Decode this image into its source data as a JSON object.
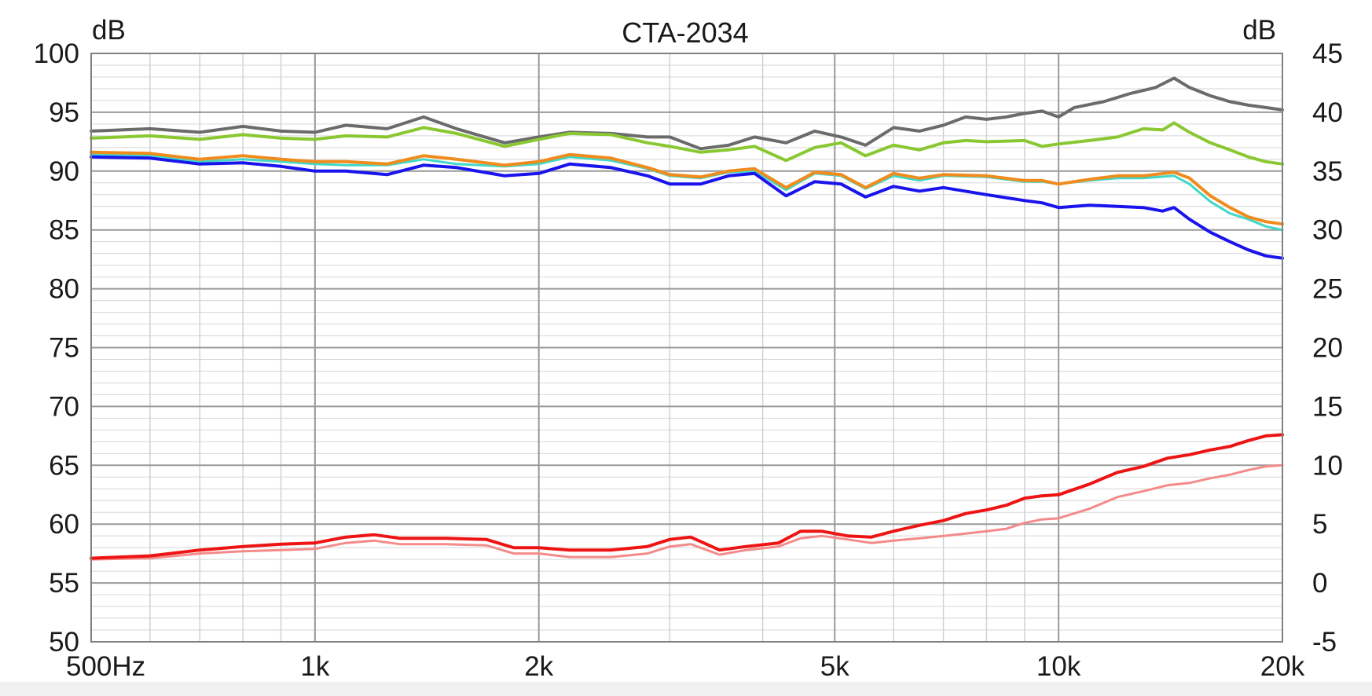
{
  "chart_data": {
    "type": "line",
    "title": "CTA-2034",
    "ylabel_left": "dB",
    "ylabel_right": "dB",
    "x_scale": "log",
    "xlim": [
      500,
      20000
    ],
    "x_ticks": [
      {
        "value": 500,
        "label": "500Hz"
      },
      {
        "value": 1000,
        "label": "1k"
      },
      {
        "value": 2000,
        "label": "2k"
      },
      {
        "value": 5000,
        "label": "5k"
      },
      {
        "value": 10000,
        "label": "10k"
      },
      {
        "value": 20000,
        "label": "20k"
      }
    ],
    "ylim_left": [
      50,
      100
    ],
    "ylim_right": [
      -5,
      45
    ],
    "y_ticks_left": [
      "100",
      "95",
      "90",
      "85",
      "80",
      "75",
      "70",
      "65",
      "60",
      "55",
      "50"
    ],
    "y_ticks_right": [
      "45",
      "40",
      "35",
      "30",
      "25",
      "20",
      "15",
      "10",
      "5",
      "0",
      "-5"
    ],
    "grid": true,
    "legend": "none",
    "series": [
      {
        "color": "#6b6b6b",
        "width": 4,
        "points": [
          [
            500,
            93.4
          ],
          [
            600,
            93.6
          ],
          [
            700,
            93.3
          ],
          [
            800,
            93.8
          ],
          [
            900,
            93.4
          ],
          [
            1000,
            93.3
          ],
          [
            1100,
            93.9
          ],
          [
            1250,
            93.6
          ],
          [
            1400,
            94.6
          ],
          [
            1550,
            93.6
          ],
          [
            1800,
            92.4
          ],
          [
            2000,
            92.9
          ],
          [
            2200,
            93.3
          ],
          [
            2500,
            93.2
          ],
          [
            2800,
            92.9
          ],
          [
            3000,
            92.9
          ],
          [
            3300,
            91.9
          ],
          [
            3600,
            92.2
          ],
          [
            3900,
            92.9
          ],
          [
            4300,
            92.4
          ],
          [
            4700,
            93.4
          ],
          [
            5100,
            92.9
          ],
          [
            5500,
            92.2
          ],
          [
            6000,
            93.7
          ],
          [
            6500,
            93.4
          ],
          [
            7000,
            93.9
          ],
          [
            7500,
            94.6
          ],
          [
            8000,
            94.4
          ],
          [
            8500,
            94.6
          ],
          [
            9000,
            94.9
          ],
          [
            9500,
            95.1
          ],
          [
            10000,
            94.6
          ],
          [
            10500,
            95.4
          ],
          [
            11500,
            95.9
          ],
          [
            12500,
            96.6
          ],
          [
            13500,
            97.1
          ],
          [
            14300,
            97.9
          ],
          [
            15000,
            97.1
          ],
          [
            16000,
            96.4
          ],
          [
            17000,
            95.9
          ],
          [
            18000,
            95.6
          ],
          [
            19000,
            95.4
          ],
          [
            20000,
            95.2
          ]
        ]
      },
      {
        "color": "#8ac832",
        "width": 4,
        "points": [
          [
            500,
            92.8
          ],
          [
            600,
            93.0
          ],
          [
            700,
            92.7
          ],
          [
            800,
            93.1
          ],
          [
            900,
            92.8
          ],
          [
            1000,
            92.7
          ],
          [
            1100,
            93.0
          ],
          [
            1250,
            92.9
          ],
          [
            1400,
            93.7
          ],
          [
            1550,
            93.2
          ],
          [
            1800,
            92.1
          ],
          [
            2000,
            92.7
          ],
          [
            2200,
            93.2
          ],
          [
            2500,
            93.1
          ],
          [
            2800,
            92.4
          ],
          [
            3000,
            92.1
          ],
          [
            3300,
            91.6
          ],
          [
            3600,
            91.8
          ],
          [
            3900,
            92.1
          ],
          [
            4300,
            90.9
          ],
          [
            4700,
            92.0
          ],
          [
            5100,
            92.4
          ],
          [
            5500,
            91.3
          ],
          [
            6000,
            92.2
          ],
          [
            6500,
            91.8
          ],
          [
            7000,
            92.4
          ],
          [
            7500,
            92.6
          ],
          [
            8000,
            92.5
          ],
          [
            9000,
            92.6
          ],
          [
            9500,
            92.1
          ],
          [
            10000,
            92.3
          ],
          [
            11000,
            92.6
          ],
          [
            12000,
            92.9
          ],
          [
            13000,
            93.6
          ],
          [
            13800,
            93.5
          ],
          [
            14300,
            94.1
          ],
          [
            15000,
            93.3
          ],
          [
            16000,
            92.4
          ],
          [
            17000,
            91.8
          ],
          [
            18000,
            91.2
          ],
          [
            19000,
            90.8
          ],
          [
            20000,
            90.6
          ]
        ]
      },
      {
        "color": "#40d8c8",
        "width": 3,
        "points": [
          [
            500,
            91.4
          ],
          [
            600,
            91.3
          ],
          [
            700,
            90.8
          ],
          [
            800,
            91.0
          ],
          [
            900,
            90.8
          ],
          [
            1000,
            90.6
          ],
          [
            1100,
            90.5
          ],
          [
            1250,
            90.5
          ],
          [
            1400,
            91.0
          ],
          [
            1550,
            90.6
          ],
          [
            1800,
            90.4
          ],
          [
            2000,
            90.6
          ],
          [
            2200,
            91.2
          ],
          [
            2500,
            90.9
          ],
          [
            2800,
            90.2
          ],
          [
            3000,
            89.6
          ],
          [
            3300,
            89.4
          ],
          [
            3600,
            89.9
          ],
          [
            3900,
            90.0
          ],
          [
            4300,
            88.4
          ],
          [
            4700,
            89.8
          ],
          [
            5100,
            89.6
          ],
          [
            5500,
            88.5
          ],
          [
            6000,
            89.6
          ],
          [
            6500,
            89.2
          ],
          [
            7000,
            89.6
          ],
          [
            8000,
            89.5
          ],
          [
            9000,
            89.1
          ],
          [
            9500,
            89.1
          ],
          [
            10000,
            88.9
          ],
          [
            11000,
            89.2
          ],
          [
            12000,
            89.4
          ],
          [
            13000,
            89.4
          ],
          [
            14300,
            89.6
          ],
          [
            15000,
            88.9
          ],
          [
            16000,
            87.4
          ],
          [
            17000,
            86.4
          ],
          [
            18000,
            85.9
          ],
          [
            19000,
            85.3
          ],
          [
            20000,
            85.0
          ]
        ]
      },
      {
        "color": "#f08c1e",
        "width": 4,
        "points": [
          [
            500,
            91.6
          ],
          [
            600,
            91.5
          ],
          [
            700,
            91.0
          ],
          [
            800,
            91.3
          ],
          [
            900,
            91.0
          ],
          [
            1000,
            90.8
          ],
          [
            1100,
            90.8
          ],
          [
            1250,
            90.6
          ],
          [
            1400,
            91.3
          ],
          [
            1550,
            91.0
          ],
          [
            1800,
            90.5
          ],
          [
            2000,
            90.8
          ],
          [
            2200,
            91.4
          ],
          [
            2500,
            91.1
          ],
          [
            2800,
            90.3
          ],
          [
            3000,
            89.7
          ],
          [
            3300,
            89.5
          ],
          [
            3600,
            90.0
          ],
          [
            3900,
            90.2
          ],
          [
            4300,
            88.6
          ],
          [
            4700,
            89.9
          ],
          [
            5100,
            89.7
          ],
          [
            5500,
            88.6
          ],
          [
            6000,
            89.8
          ],
          [
            6500,
            89.4
          ],
          [
            7000,
            89.7
          ],
          [
            8000,
            89.6
          ],
          [
            9000,
            89.2
          ],
          [
            9500,
            89.2
          ],
          [
            10000,
            88.9
          ],
          [
            11000,
            89.3
          ],
          [
            12000,
            89.6
          ],
          [
            13000,
            89.6
          ],
          [
            14300,
            89.9
          ],
          [
            15000,
            89.4
          ],
          [
            16000,
            87.9
          ],
          [
            17000,
            86.9
          ],
          [
            18000,
            86.1
          ],
          [
            19000,
            85.7
          ],
          [
            20000,
            85.5
          ]
        ]
      },
      {
        "color": "#1a14ec",
        "width": 4,
        "points": [
          [
            500,
            91.2
          ],
          [
            600,
            91.1
          ],
          [
            700,
            90.6
          ],
          [
            800,
            90.7
          ],
          [
            900,
            90.4
          ],
          [
            1000,
            90.0
          ],
          [
            1100,
            90.0
          ],
          [
            1250,
            89.7
          ],
          [
            1400,
            90.5
          ],
          [
            1550,
            90.3
          ],
          [
            1800,
            89.6
          ],
          [
            2000,
            89.8
          ],
          [
            2200,
            90.6
          ],
          [
            2500,
            90.3
          ],
          [
            2800,
            89.6
          ],
          [
            3000,
            88.9
          ],
          [
            3300,
            88.9
          ],
          [
            3600,
            89.6
          ],
          [
            3900,
            89.8
          ],
          [
            4300,
            87.9
          ],
          [
            4700,
            89.1
          ],
          [
            5100,
            88.9
          ],
          [
            5500,
            87.8
          ],
          [
            6000,
            88.7
          ],
          [
            6500,
            88.3
          ],
          [
            7000,
            88.6
          ],
          [
            8000,
            88.0
          ],
          [
            9000,
            87.5
          ],
          [
            9500,
            87.3
          ],
          [
            10000,
            86.9
          ],
          [
            11000,
            87.1
          ],
          [
            12000,
            87.0
          ],
          [
            13000,
            86.9
          ],
          [
            13800,
            86.6
          ],
          [
            14300,
            86.9
          ],
          [
            15000,
            85.9
          ],
          [
            16000,
            84.8
          ],
          [
            17000,
            84.0
          ],
          [
            18000,
            83.3
          ],
          [
            19000,
            82.8
          ],
          [
            20000,
            82.6
          ]
        ]
      },
      {
        "color": "#f48a8a",
        "width": 3,
        "points": [
          [
            500,
            57.0
          ],
          [
            600,
            57.1
          ],
          [
            700,
            57.5
          ],
          [
            800,
            57.7
          ],
          [
            900,
            57.8
          ],
          [
            1000,
            57.9
          ],
          [
            1100,
            58.4
          ],
          [
            1200,
            58.6
          ],
          [
            1300,
            58.3
          ],
          [
            1500,
            58.3
          ],
          [
            1700,
            58.2
          ],
          [
            1850,
            57.5
          ],
          [
            2000,
            57.5
          ],
          [
            2200,
            57.2
          ],
          [
            2500,
            57.2
          ],
          [
            2800,
            57.5
          ],
          [
            3000,
            58.1
          ],
          [
            3200,
            58.3
          ],
          [
            3500,
            57.4
          ],
          [
            3800,
            57.8
          ],
          [
            4200,
            58.1
          ],
          [
            4500,
            58.8
          ],
          [
            4800,
            59.0
          ],
          [
            5200,
            58.7
          ],
          [
            5600,
            58.4
          ],
          [
            6000,
            58.6
          ],
          [
            6500,
            58.8
          ],
          [
            7000,
            59.0
          ],
          [
            7500,
            59.2
          ],
          [
            8000,
            59.4
          ],
          [
            8500,
            59.6
          ],
          [
            9000,
            60.1
          ],
          [
            9500,
            60.4
          ],
          [
            10000,
            60.5
          ],
          [
            11000,
            61.3
          ],
          [
            12000,
            62.3
          ],
          [
            13000,
            62.8
          ],
          [
            14000,
            63.3
          ],
          [
            15000,
            63.5
          ],
          [
            16000,
            63.9
          ],
          [
            17000,
            64.2
          ],
          [
            18000,
            64.6
          ],
          [
            19000,
            64.9
          ],
          [
            20000,
            65.0
          ]
        ]
      },
      {
        "color": "#ee1414",
        "width": 4,
        "points": [
          [
            500,
            57.1
          ],
          [
            600,
            57.3
          ],
          [
            700,
            57.8
          ],
          [
            800,
            58.1
          ],
          [
            900,
            58.3
          ],
          [
            1000,
            58.4
          ],
          [
            1100,
            58.9
          ],
          [
            1200,
            59.1
          ],
          [
            1300,
            58.8
          ],
          [
            1500,
            58.8
          ],
          [
            1700,
            58.7
          ],
          [
            1850,
            58.0
          ],
          [
            2000,
            58.0
          ],
          [
            2200,
            57.8
          ],
          [
            2500,
            57.8
          ],
          [
            2800,
            58.1
          ],
          [
            3000,
            58.7
          ],
          [
            3200,
            58.9
          ],
          [
            3500,
            57.8
          ],
          [
            3800,
            58.1
          ],
          [
            4200,
            58.4
          ],
          [
            4500,
            59.4
          ],
          [
            4800,
            59.4
          ],
          [
            5200,
            59.0
          ],
          [
            5600,
            58.9
          ],
          [
            6000,
            59.4
          ],
          [
            6500,
            59.9
          ],
          [
            7000,
            60.3
          ],
          [
            7500,
            60.9
          ],
          [
            8000,
            61.2
          ],
          [
            8500,
            61.6
          ],
          [
            9000,
            62.2
          ],
          [
            9500,
            62.4
          ],
          [
            10000,
            62.5
          ],
          [
            11000,
            63.4
          ],
          [
            12000,
            64.4
          ],
          [
            13000,
            64.9
          ],
          [
            14000,
            65.6
          ],
          [
            15000,
            65.9
          ],
          [
            16000,
            66.3
          ],
          [
            17000,
            66.6
          ],
          [
            18000,
            67.1
          ],
          [
            19000,
            67.5
          ],
          [
            20000,
            67.6
          ]
        ]
      }
    ]
  }
}
